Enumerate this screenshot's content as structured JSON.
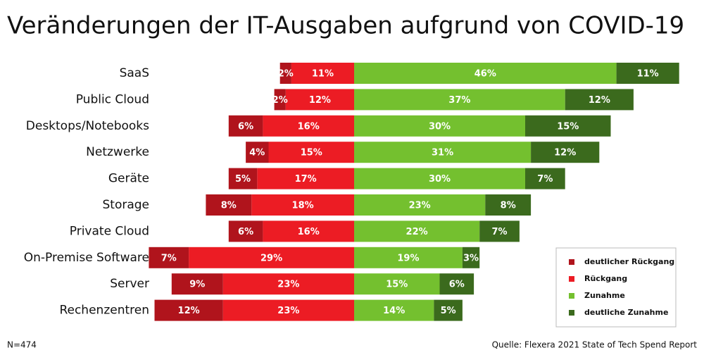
{
  "chart_data": {
    "type": "diverging-bar",
    "title": "Veränderungen der IT-Ausgaben aufgrund von COVID-19",
    "categories": [
      "SaaS",
      "Public Cloud",
      "Desktops/Notebooks",
      "Netzwerke",
      "Geräte",
      "Storage",
      "Private Cloud",
      "On-Premise Software",
      "Server",
      "Rechenzentren"
    ],
    "series": [
      {
        "name": "deutlicher Rückgang",
        "color": "#b0141c",
        "values": [
          2,
          2,
          6,
          4,
          5,
          8,
          6,
          7,
          9,
          12
        ],
        "value_labels": [
          "2%",
          "2%",
          "6%",
          "4%",
          "5%",
          "8%",
          "6%",
          "7%",
          "9%",
          "12%"
        ]
      },
      {
        "name": "Rückgang",
        "color": "#ec1c24",
        "values": [
          11,
          12,
          16,
          15,
          17,
          18,
          16,
          29,
          23,
          23
        ],
        "value_labels": [
          "11%",
          "12%",
          "16%",
          "15%",
          "17%",
          "18%",
          "16%",
          "29%",
          "23%",
          "23%"
        ]
      },
      {
        "name": "Zunahme",
        "color": "#74c02f",
        "values": [
          46,
          37,
          30,
          31,
          30,
          23,
          22,
          19,
          15,
          14
        ],
        "value_labels": [
          "46%",
          "37%",
          "30%",
          "31%",
          "30%",
          "23%",
          "22%",
          "19%",
          "15%",
          "14%"
        ]
      },
      {
        "name": "deutliche Zunahme",
        "color": "#3b6a1d",
        "values": [
          11,
          12,
          15,
          12,
          7,
          8,
          7,
          3,
          6,
          5
        ],
        "value_labels": [
          "11%",
          "12%",
          "15%",
          "12%",
          "7%",
          "8%",
          "7%",
          "3%",
          "6%",
          "5%"
        ]
      }
    ],
    "legend": "lower right",
    "note": "N=474",
    "source": "Quelle: Flexera 2021 State of Tech Spend Report"
  }
}
